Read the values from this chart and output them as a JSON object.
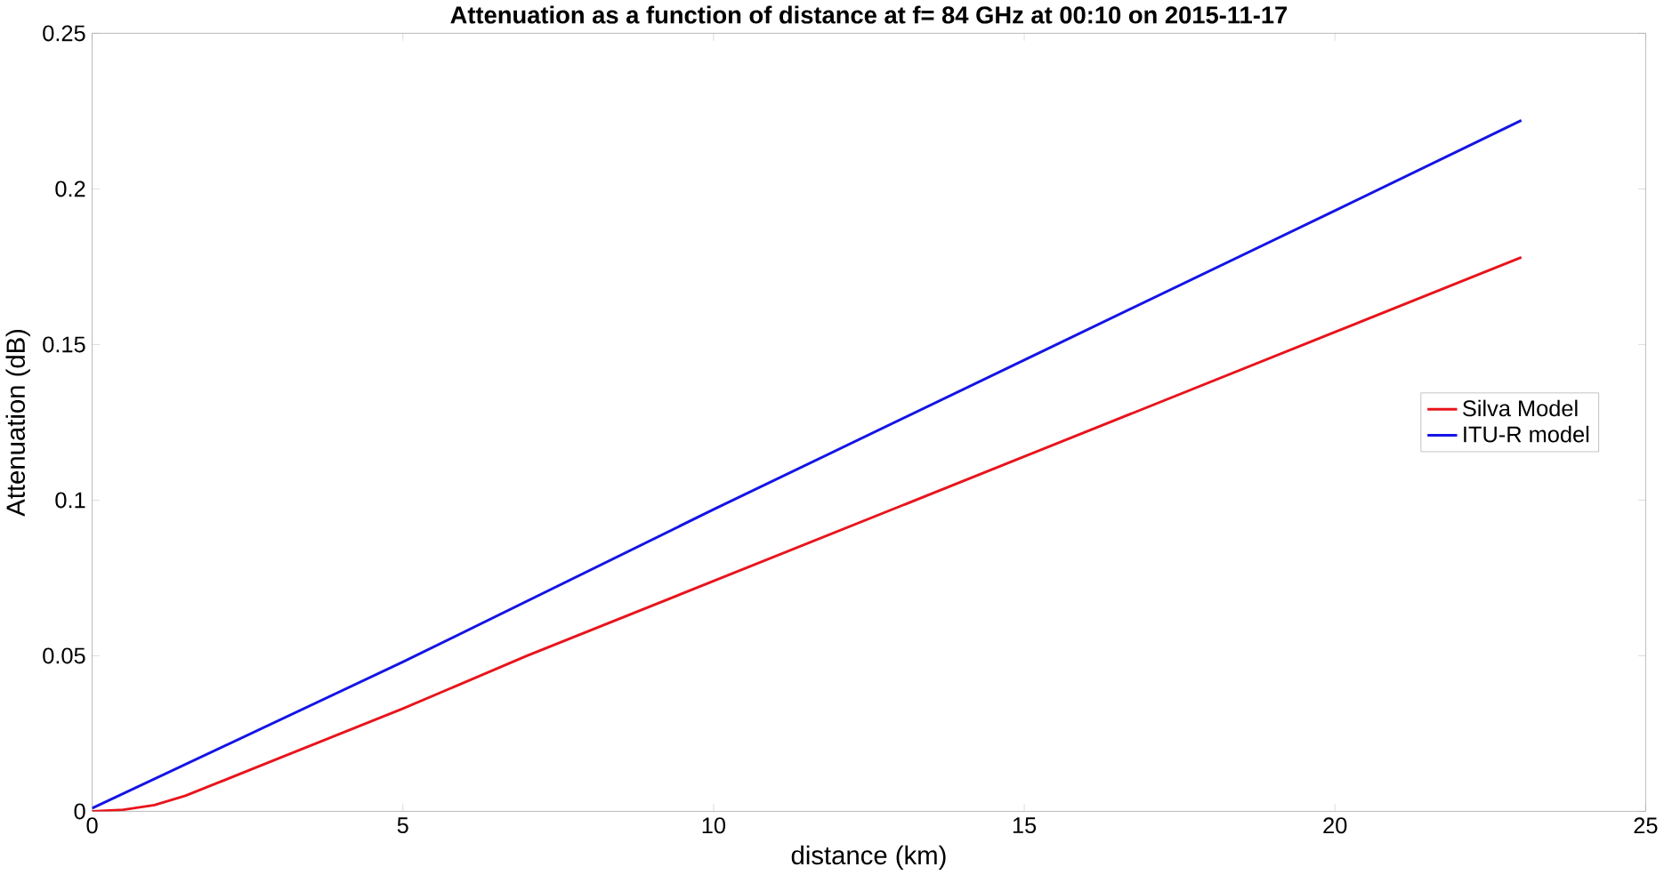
{
  "chart_data": {
    "type": "line",
    "title": "Attenuation as a function of distance at f= 84 GHz at 00:10 on 2015-11-17",
    "xlabel": "distance (km)",
    "ylabel": "Attenuation (dB)",
    "xlim": [
      0,
      25
    ],
    "ylim": [
      0,
      0.25
    ],
    "xticks": [
      0,
      5,
      10,
      15,
      20,
      25
    ],
    "yticks": [
      0,
      0.05,
      0.1,
      0.15,
      0.2,
      0.25
    ],
    "legend": "right",
    "grid": false,
    "series": [
      {
        "name": "Silva Model",
        "color": "#e8141b",
        "x": [
          0,
          0.5,
          1,
          1.5,
          2,
          3,
          4,
          5,
          7,
          10,
          15,
          20,
          23
        ],
        "values": [
          0,
          0.0005,
          0.002,
          0.005,
          0.009,
          0.017,
          0.025,
          0.033,
          0.05,
          0.074,
          0.114,
          0.154,
          0.178
        ]
      },
      {
        "name": "ITU-R model",
        "color": "#1414e6",
        "x": [
          0,
          5,
          10,
          15,
          20,
          23
        ],
        "values": [
          0.001,
          0.048,
          0.097,
          0.145,
          0.193,
          0.222
        ]
      }
    ]
  }
}
